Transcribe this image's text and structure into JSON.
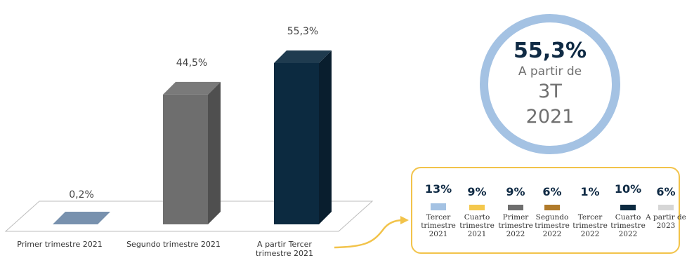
{
  "chart_data": [
    {
      "type": "bar",
      "categories": [
        "Primer trimestre 2021",
        "Segundo trimestre 2021",
        "A partir Tercer trimestre 2021"
      ],
      "values": [
        0.2,
        44.5,
        55.3
      ],
      "value_labels": [
        "0,2%",
        "44,5%",
        "55,3%"
      ],
      "colors": [
        "#7891ae",
        "#6e6e6e",
        "#0c2a40"
      ],
      "style": "3d-column",
      "ylim": [
        0,
        60
      ]
    },
    {
      "type": "bar",
      "categories": [
        "Tercer trimestre 2021",
        "Cuarto trimestre 2021",
        "Primer trimestre 2022",
        "Segundo trimestre 2022",
        "Tercer trimestre 2022",
        "Cuarto trimestre 2022",
        "A partir de 2023"
      ],
      "values": [
        13,
        9,
        9,
        6,
        1,
        10,
        6
      ],
      "value_labels": [
        "13%",
        "9%",
        "9%",
        "6%",
        "1%",
        "10%",
        "6%"
      ],
      "colors": [
        "#a4c2e3",
        "#f4c84d",
        "#6e6e6e",
        "#b07a2a",
        "#ffffff",
        "#0c2a40",
        "#d6d6d6"
      ]
    }
  ],
  "ring": {
    "value": "55,3%",
    "line1": "A partir de",
    "line2": "3T",
    "line3": "2021"
  },
  "colors": {
    "ring": "#a4c2e3",
    "panel_border": "#f2c34a",
    "arrow": "#f2c34a"
  }
}
